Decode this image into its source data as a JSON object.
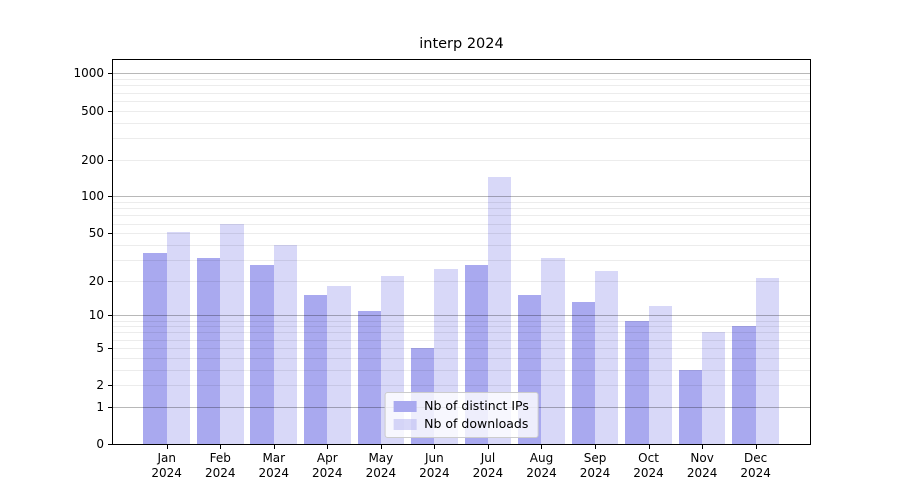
{
  "title": "interp 2024",
  "chart_data": {
    "type": "bar",
    "title": "interp 2024",
    "months": [
      "Jan",
      "Feb",
      "Mar",
      "Apr",
      "May",
      "Jun",
      "Jul",
      "Aug",
      "Sep",
      "Oct",
      "Nov",
      "Dec"
    ],
    "year_label": "2024",
    "series": [
      {
        "name": "Nb of distinct IPs",
        "color": "rgba(169,169,239,1)",
        "values": [
          34,
          31,
          27,
          15,
          11,
          5,
          27,
          15,
          13,
          9,
          3,
          8
        ]
      },
      {
        "name": "Nb of downloads",
        "color": "rgba(169,169,239,0.45)",
        "values": [
          51,
          60,
          40,
          18,
          22,
          25,
          145,
          31,
          24,
          12,
          7,
          21
        ]
      }
    ],
    "yscale": "log10(1+v)",
    "yticks": [
      0,
      1,
      2,
      5,
      10,
      20,
      50,
      100,
      200,
      500,
      1000
    ],
    "ylim": [
      0,
      1324
    ],
    "grid": {
      "major": [
        1,
        10,
        100,
        1000
      ],
      "minor": [
        2,
        3,
        4,
        5,
        6,
        7,
        8,
        9,
        20,
        30,
        40,
        50,
        60,
        70,
        80,
        90,
        200,
        300,
        400,
        500,
        600,
        700,
        800,
        900
      ]
    },
    "legend_position": "lower center"
  }
}
